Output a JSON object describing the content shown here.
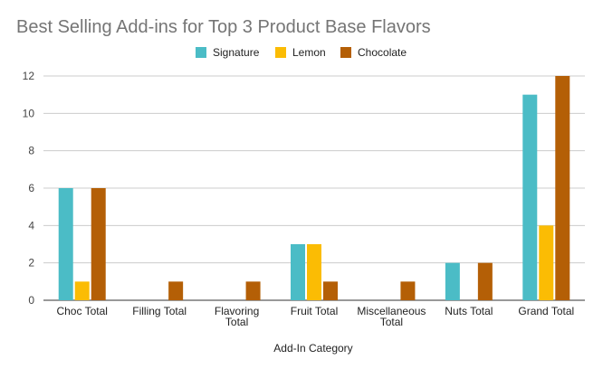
{
  "chart_data": {
    "type": "bar",
    "title": "Best Selling Add-ins for Top 3 Product Base Flavors",
    "xlabel": "Add-In Category",
    "ylabel": "",
    "ylim": [
      0,
      12
    ],
    "yticks": [
      0,
      2,
      4,
      6,
      8,
      10,
      12
    ],
    "grid": true,
    "legend_position": "top-center",
    "categories": [
      [
        "Choc Total"
      ],
      [
        "Filling Total"
      ],
      [
        "Flavoring",
        "Total"
      ],
      [
        "Fruit Total"
      ],
      [
        "Miscellaneous",
        "Total"
      ],
      [
        "Nuts Total"
      ],
      [
        "Grand Total"
      ]
    ],
    "series": [
      {
        "name": "Signature",
        "color": "#4bbcc6",
        "values": [
          6,
          0,
          0,
          3,
          0,
          2,
          11
        ]
      },
      {
        "name": "Lemon",
        "color": "#fbbc04",
        "values": [
          1,
          0,
          0,
          3,
          0,
          0,
          4
        ]
      },
      {
        "name": "Chocolate",
        "color": "#b45f06",
        "values": [
          6,
          1,
          1,
          1,
          1,
          2,
          12
        ]
      }
    ]
  }
}
